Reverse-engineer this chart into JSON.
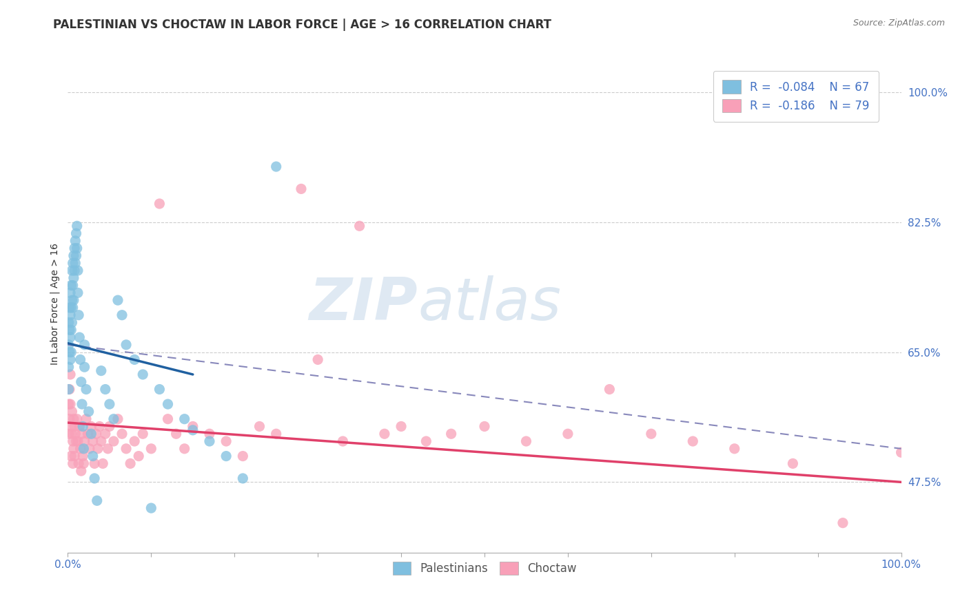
{
  "title": "PALESTINIAN VS CHOCTAW IN LABOR FORCE | AGE > 16 CORRELATION CHART",
  "source": "Source: ZipAtlas.com",
  "ylabel": "In Labor Force | Age > 16",
  "xlim": [
    0.0,
    1.0
  ],
  "ylim": [
    0.38,
    1.05
  ],
  "x_tick_positions": [
    0.0,
    0.1,
    0.2,
    0.3,
    0.4,
    0.5,
    0.6,
    0.7,
    0.8,
    0.9,
    1.0
  ],
  "x_tick_labels": [
    "0.0%",
    "",
    "",
    "",
    "",
    "",
    "",
    "",
    "",
    "",
    "100.0%"
  ],
  "y_tick_values": [
    0.475,
    0.65,
    0.825,
    1.0
  ],
  "y_tick_labels": [
    "47.5%",
    "65.0%",
    "82.5%",
    "100.0%"
  ],
  "legend_r1": "-0.084",
  "legend_n1": "67",
  "legend_r2": "-0.186",
  "legend_n2": "79",
  "blue_color": "#7fbfdf",
  "pink_color": "#f8a0b8",
  "blue_line_color": "#2060a0",
  "pink_line_color": "#e0406a",
  "dashed_line_color": "#8888bb",
  "watermark_zip": "ZIP",
  "watermark_atlas": "atlas",
  "background_color": "#ffffff",
  "grid_color": "#cccccc",
  "blue_line_x": [
    0.0,
    0.15
  ],
  "blue_line_y": [
    0.662,
    0.62
  ],
  "pink_line_x": [
    0.0,
    1.0
  ],
  "pink_line_y": [
    0.555,
    0.475
  ],
  "dash_line_x": [
    0.0,
    1.0
  ],
  "dash_line_y": [
    0.66,
    0.52
  ],
  "pal_x": [
    0.001,
    0.001,
    0.001,
    0.001,
    0.002,
    0.002,
    0.002,
    0.003,
    0.003,
    0.003,
    0.003,
    0.004,
    0.004,
    0.004,
    0.004,
    0.005,
    0.005,
    0.005,
    0.006,
    0.006,
    0.006,
    0.007,
    0.007,
    0.007,
    0.008,
    0.008,
    0.009,
    0.009,
    0.01,
    0.01,
    0.011,
    0.011,
    0.012,
    0.012,
    0.013,
    0.014,
    0.015,
    0.016,
    0.017,
    0.018,
    0.019,
    0.02,
    0.02,
    0.022,
    0.025,
    0.028,
    0.03,
    0.032,
    0.035,
    0.04,
    0.045,
    0.05,
    0.055,
    0.06,
    0.065,
    0.07,
    0.08,
    0.09,
    0.1,
    0.11,
    0.12,
    0.14,
    0.15,
    0.17,
    0.19,
    0.21,
    0.25
  ],
  "pal_y": [
    0.69,
    0.66,
    0.63,
    0.6,
    0.71,
    0.68,
    0.65,
    0.73,
    0.7,
    0.67,
    0.64,
    0.74,
    0.71,
    0.68,
    0.65,
    0.76,
    0.72,
    0.69,
    0.77,
    0.74,
    0.71,
    0.78,
    0.75,
    0.72,
    0.79,
    0.76,
    0.8,
    0.77,
    0.81,
    0.78,
    0.82,
    0.79,
    0.76,
    0.73,
    0.7,
    0.67,
    0.64,
    0.61,
    0.58,
    0.55,
    0.52,
    0.66,
    0.63,
    0.6,
    0.57,
    0.54,
    0.51,
    0.48,
    0.45,
    0.625,
    0.6,
    0.58,
    0.56,
    0.72,
    0.7,
    0.66,
    0.64,
    0.62,
    0.44,
    0.6,
    0.58,
    0.56,
    0.545,
    0.53,
    0.51,
    0.48,
    0.9
  ],
  "cho_x": [
    0.001,
    0.001,
    0.002,
    0.002,
    0.003,
    0.003,
    0.004,
    0.004,
    0.005,
    0.005,
    0.006,
    0.006,
    0.007,
    0.007,
    0.008,
    0.008,
    0.009,
    0.01,
    0.011,
    0.012,
    0.013,
    0.014,
    0.015,
    0.016,
    0.017,
    0.018,
    0.019,
    0.02,
    0.022,
    0.024,
    0.026,
    0.028,
    0.03,
    0.032,
    0.034,
    0.036,
    0.038,
    0.04,
    0.042,
    0.045,
    0.048,
    0.05,
    0.055,
    0.06,
    0.065,
    0.07,
    0.075,
    0.08,
    0.085,
    0.09,
    0.1,
    0.11,
    0.12,
    0.13,
    0.14,
    0.15,
    0.17,
    0.19,
    0.21,
    0.23,
    0.25,
    0.28,
    0.3,
    0.33,
    0.35,
    0.38,
    0.4,
    0.43,
    0.46,
    0.5,
    0.55,
    0.6,
    0.65,
    0.7,
    0.75,
    0.8,
    0.87,
    0.93,
    1.0
  ],
  "cho_y": [
    0.58,
    0.54,
    0.6,
    0.56,
    0.62,
    0.58,
    0.55,
    0.51,
    0.57,
    0.54,
    0.53,
    0.5,
    0.56,
    0.52,
    0.55,
    0.51,
    0.54,
    0.53,
    0.56,
    0.53,
    0.5,
    0.55,
    0.52,
    0.49,
    0.54,
    0.51,
    0.5,
    0.53,
    0.56,
    0.54,
    0.52,
    0.55,
    0.53,
    0.5,
    0.54,
    0.52,
    0.55,
    0.53,
    0.5,
    0.54,
    0.52,
    0.55,
    0.53,
    0.56,
    0.54,
    0.52,
    0.5,
    0.53,
    0.51,
    0.54,
    0.52,
    0.85,
    0.56,
    0.54,
    0.52,
    0.55,
    0.54,
    0.53,
    0.51,
    0.55,
    0.54,
    0.87,
    0.64,
    0.53,
    0.82,
    0.54,
    0.55,
    0.53,
    0.54,
    0.55,
    0.53,
    0.54,
    0.6,
    0.54,
    0.53,
    0.52,
    0.5,
    0.42,
    0.515
  ]
}
